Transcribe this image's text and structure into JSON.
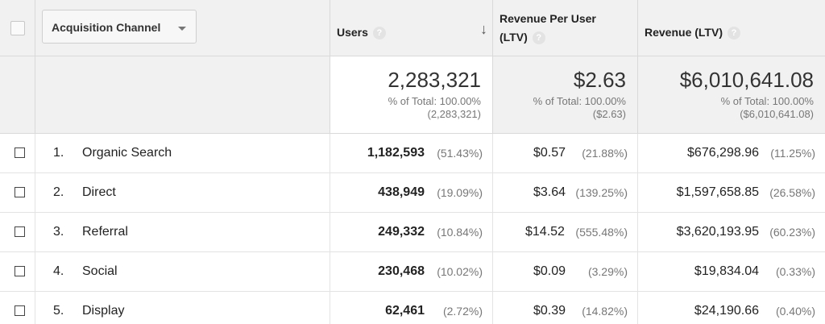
{
  "header": {
    "channel_label": "Acquisition Channel",
    "users_label": "Users",
    "rpu_label_line1": "Revenue Per User",
    "rpu_label_line2": "(LTV)",
    "revenue_label": "Revenue (LTV)",
    "help_glyph": "?",
    "sort_glyph": "↓"
  },
  "totals": {
    "users": {
      "value": "2,283,321",
      "pct": "% of Total: 100.00%",
      "abs": "(2,283,321)"
    },
    "rpu": {
      "value": "$2.63",
      "pct": "% of Total: 100.00%",
      "abs": "($2.63)"
    },
    "revenue": {
      "value": "$6,010,641.08",
      "pct": "% of Total: 100.00%",
      "abs": "($6,010,641.08)"
    }
  },
  "rows": [
    {
      "num": "1.",
      "channel": "Organic Search",
      "users": "1,182,593",
      "users_pct": "(51.43%)",
      "rpu": "$0.57",
      "rpu_pct": "(21.88%)",
      "revenue": "$676,298.96",
      "revenue_pct": "(11.25%)"
    },
    {
      "num": "2.",
      "channel": "Direct",
      "users": "438,949",
      "users_pct": "(19.09%)",
      "rpu": "$3.64",
      "rpu_pct": "(139.25%)",
      "revenue": "$1,597,658.85",
      "revenue_pct": "(26.58%)"
    },
    {
      "num": "3.",
      "channel": "Referral",
      "users": "249,332",
      "users_pct": "(10.84%)",
      "rpu": "$14.52",
      "rpu_pct": "(555.48%)",
      "revenue": "$3,620,193.95",
      "revenue_pct": "(60.23%)"
    },
    {
      "num": "4.",
      "channel": "Social",
      "users": "230,468",
      "users_pct": "(10.02%)",
      "rpu": "$0.09",
      "rpu_pct": "(3.29%)",
      "revenue": "$19,834.04",
      "revenue_pct": "(0.33%)"
    },
    {
      "num": "5.",
      "channel": "Display",
      "users": "62,461",
      "users_pct": "(2.72%)",
      "rpu": "$0.39",
      "rpu_pct": "(14.82%)",
      "revenue": "$24,190.66",
      "revenue_pct": "(0.40%)"
    }
  ]
}
